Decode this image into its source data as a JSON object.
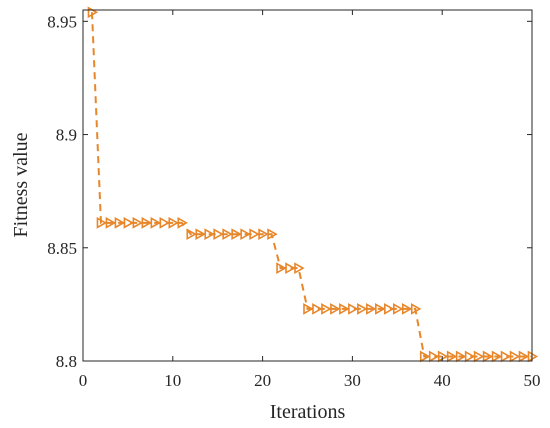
{
  "chart_data": {
    "type": "line",
    "xlabel": "Iterations",
    "ylabel": "Fitness value",
    "xlim": [
      0,
      50
    ],
    "ylim": [
      8.8,
      8.955
    ],
    "xticks": [
      0,
      10,
      20,
      30,
      40,
      50
    ],
    "xtick_labels": [
      "0",
      "10",
      "20",
      "30",
      "40",
      "50"
    ],
    "yticks": [
      8.8,
      8.85,
      8.9,
      8.95
    ],
    "ytick_labels": [
      "8.8",
      "8.85",
      "8.9",
      "8.95"
    ],
    "grid": false,
    "box": true,
    "series": [
      {
        "line_style": "dashed",
        "marker": "triangle-right",
        "color": "#E8862A",
        "x": [
          1,
          2,
          3,
          4,
          5,
          6,
          7,
          8,
          9,
          10,
          11,
          12,
          13,
          14,
          15,
          16,
          17,
          18,
          19,
          20,
          21,
          22,
          23,
          24,
          25,
          26,
          27,
          28,
          29,
          30,
          31,
          32,
          33,
          34,
          35,
          36,
          37,
          38,
          39,
          40,
          41,
          42,
          43,
          44,
          45,
          46,
          47,
          48,
          49,
          50
        ],
        "y": [
          8.954,
          8.861,
          8.861,
          8.861,
          8.861,
          8.861,
          8.861,
          8.861,
          8.861,
          8.861,
          8.861,
          8.856,
          8.856,
          8.856,
          8.856,
          8.856,
          8.856,
          8.856,
          8.856,
          8.856,
          8.856,
          8.841,
          8.841,
          8.841,
          8.823,
          8.823,
          8.823,
          8.823,
          8.823,
          8.823,
          8.823,
          8.823,
          8.823,
          8.823,
          8.823,
          8.823,
          8.823,
          8.802,
          8.802,
          8.802,
          8.802,
          8.802,
          8.802,
          8.802,
          8.802,
          8.802,
          8.802,
          8.802,
          8.802,
          8.802
        ]
      }
    ]
  }
}
